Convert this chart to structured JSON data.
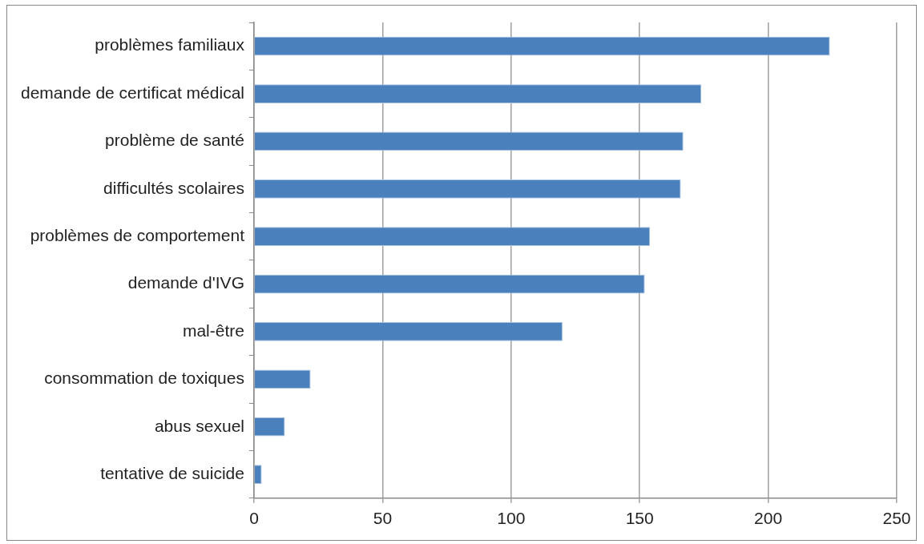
{
  "chart_data": {
    "type": "bar",
    "orientation": "horizontal",
    "categories": [
      "problèmes familiaux",
      "demande de certificat médical",
      "problème de santé",
      "difficultés scolaires",
      "problèmes de comportement",
      "demande d'IVG",
      "mal-être",
      "consommation de toxiques",
      "abus sexuel",
      "tentative de suicide"
    ],
    "values": [
      224,
      174,
      167,
      166,
      154,
      152,
      120,
      22,
      12,
      3
    ],
    "color": "#4a81bd",
    "xlim": [
      0,
      250
    ],
    "xticks": [
      0,
      50,
      100,
      150,
      200,
      250
    ],
    "grid": "x",
    "legend": false
  }
}
